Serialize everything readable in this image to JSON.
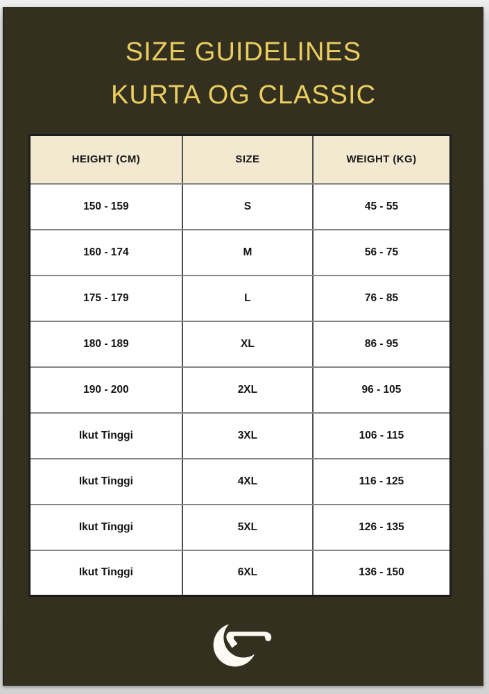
{
  "title": {
    "line1": "SIZE GUIDELINES",
    "line2": "KURTA OG CLASSIC"
  },
  "table": {
    "headers": [
      "HEIGHT (CM)",
      "SIZE",
      "WEIGHT (KG)"
    ],
    "rows": [
      [
        "150 - 159",
        "S",
        "45 - 55"
      ],
      [
        "160 - 174",
        "M",
        "56 - 75"
      ],
      [
        "175 - 179",
        "L",
        "76 - 85"
      ],
      [
        "180 - 189",
        "XL",
        "86 - 95"
      ],
      [
        "190 - 200",
        "2XL",
        "96 - 105"
      ],
      [
        "Ikut Tinggi",
        "3XL",
        "106 - 115"
      ],
      [
        "Ikut Tinggi",
        "4XL",
        "116 - 125"
      ],
      [
        "Ikut Tinggi",
        "5XL",
        "126 - 135"
      ],
      [
        "Ikut Tinggi",
        "6XL",
        "136 - 150"
      ]
    ]
  },
  "logo": {
    "icon": "crescent-moon-calligraphy-icon"
  },
  "colors": {
    "page_background": "#d8d8d8",
    "panel_background": "#34301f",
    "title_text": "#ebce5f",
    "header_background": "#f3e9d1",
    "cell_background": "#ffffff",
    "cell_text": "#141414",
    "logo": "#fcfaf3"
  }
}
